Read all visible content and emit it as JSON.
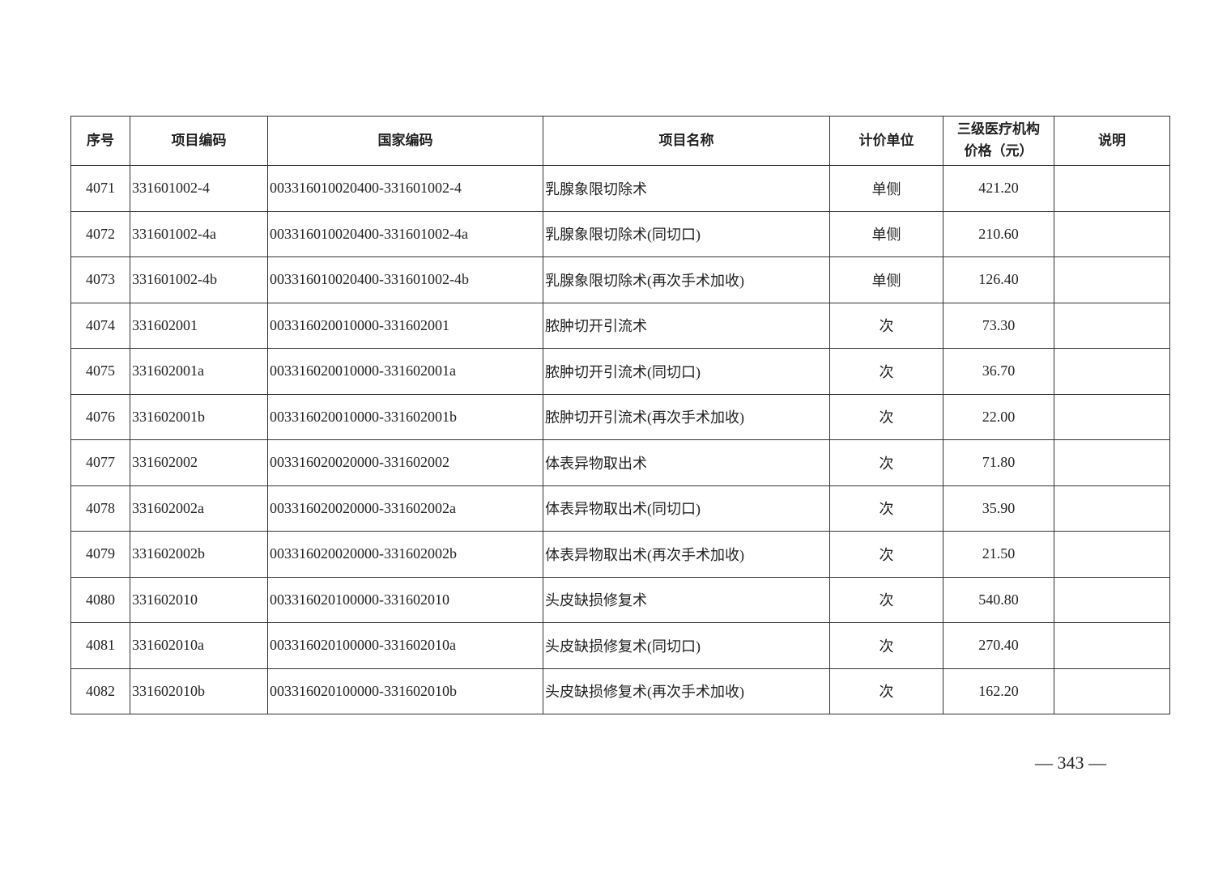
{
  "table": {
    "headers": [
      "序号",
      "项目编码",
      "国家编码",
      "项目名称",
      "计价单位",
      "三级医疗机构价格（元）",
      "说明"
    ],
    "header_price_line1": "三级医疗机构",
    "header_price_line2": "价格（元）",
    "rows": [
      [
        "4071",
        "331601002-4",
        "003316010020400-331601002-4",
        "乳腺象限切除术",
        "单侧",
        "421.20",
        ""
      ],
      [
        "4072",
        "331601002-4a",
        "003316010020400-331601002-4a",
        "乳腺象限切除术(同切口)",
        "单侧",
        "210.60",
        ""
      ],
      [
        "4073",
        "331601002-4b",
        "003316010020400-331601002-4b",
        "乳腺象限切除术(再次手术加收)",
        "单侧",
        "126.40",
        ""
      ],
      [
        "4074",
        "331602001",
        "003316020010000-331602001",
        "脓肿切开引流术",
        "次",
        "73.30",
        ""
      ],
      [
        "4075",
        "331602001a",
        "003316020010000-331602001a",
        "脓肿切开引流术(同切口)",
        "次",
        "36.70",
        ""
      ],
      [
        "4076",
        "331602001b",
        "003316020010000-331602001b",
        "脓肿切开引流术(再次手术加收)",
        "次",
        "22.00",
        ""
      ],
      [
        "4077",
        "331602002",
        "003316020020000-331602002",
        "体表异物取出术",
        "次",
        "71.80",
        ""
      ],
      [
        "4078",
        "331602002a",
        "003316020020000-331602002a",
        "体表异物取出术(同切口)",
        "次",
        "35.90",
        ""
      ],
      [
        "4079",
        "331602002b",
        "003316020020000-331602002b",
        "体表异物取出术(再次手术加收)",
        "次",
        "21.50",
        ""
      ],
      [
        "4080",
        "331602010",
        "003316020100000-331602010",
        "头皮缺损修复术",
        "次",
        "540.80",
        ""
      ],
      [
        "4081",
        "331602010a",
        "003316020100000-331602010a",
        "头皮缺损修复术(同切口)",
        "次",
        "270.40",
        ""
      ],
      [
        "4082",
        "331602010b",
        "003316020100000-331602010b",
        "头皮缺损修复术(再次手术加收)",
        "次",
        "162.20",
        ""
      ]
    ]
  },
  "page_number": "— 343 —"
}
